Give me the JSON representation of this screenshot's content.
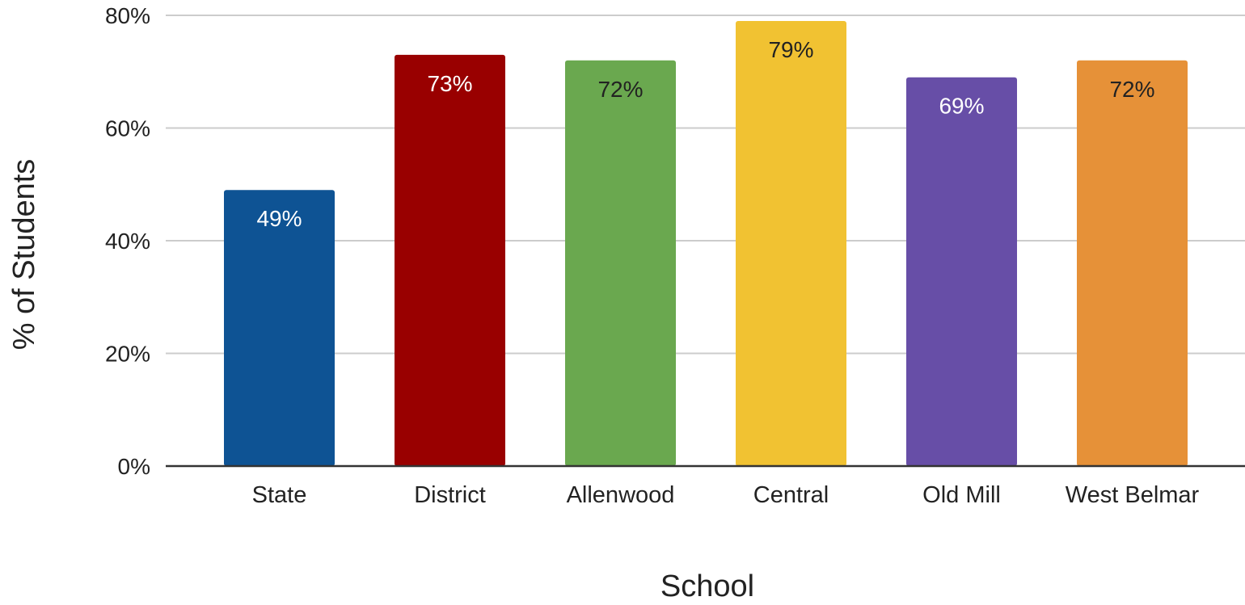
{
  "chart_data": {
    "type": "bar",
    "title": "",
    "xlabel": "School",
    "ylabel": "% of Students",
    "categories": [
      "State",
      "District",
      "Allenwood",
      "Central",
      "Old Mill",
      "West Belmar"
    ],
    "values": [
      49,
      73,
      72,
      79,
      69,
      72
    ],
    "value_labels": [
      "49%",
      "73%",
      "72%",
      "79%",
      "69%",
      "72%"
    ],
    "colors": [
      "#0e5394",
      "#990000",
      "#6aa84f",
      "#f1c232",
      "#674ea7",
      "#e69138"
    ],
    "label_colors": [
      "#ffffff",
      "#ffffff",
      "#222222",
      "#222222",
      "#ffffff",
      "#222222"
    ],
    "ylim": [
      0,
      80
    ],
    "yticks": [
      0,
      20,
      40,
      60,
      80
    ],
    "ytick_labels": [
      "0%",
      "20%",
      "40%",
      "60%",
      "80%"
    ],
    "grid": true,
    "legend": "none",
    "gridline_color": "#cccccc",
    "baseline_color": "#333333"
  }
}
